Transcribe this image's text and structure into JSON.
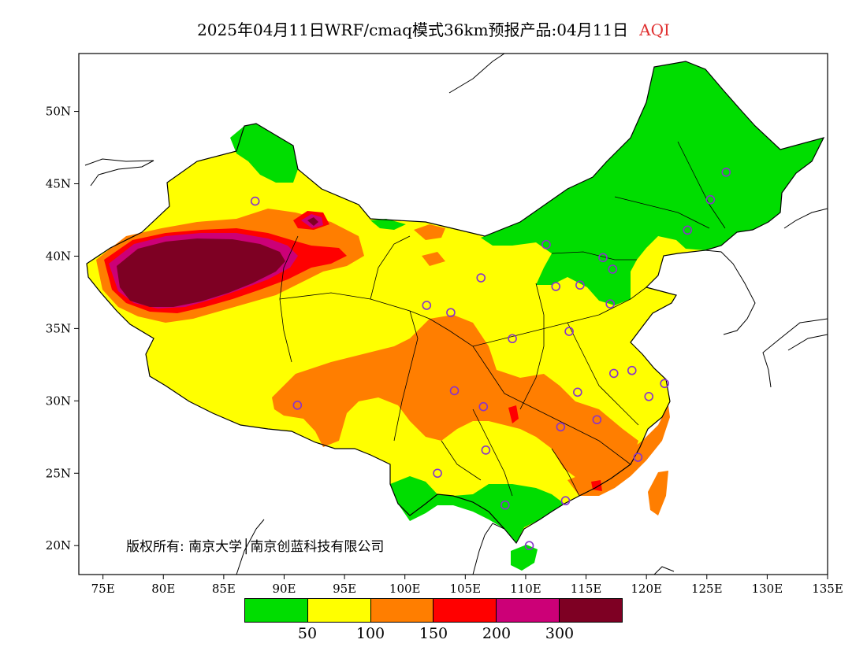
{
  "title": {
    "main": "2025年04月11日WRF/cmaq模式36km预报产品:04月11日",
    "variable": "AQI"
  },
  "axes": {
    "x_ticks": [
      "75E",
      "80E",
      "85E",
      "90E",
      "95E",
      "100E",
      "105E",
      "110E",
      "115E",
      "120E",
      "125E",
      "130E",
      "135E"
    ],
    "y_ticks": [
      "50N",
      "45N",
      "40N",
      "35N",
      "30N",
      "25N",
      "20N"
    ]
  },
  "copyright": "版权所有: 南京大学│南京创蓝科技有限公司",
  "legend": {
    "colors": [
      "#00dd00",
      "#ffff00",
      "#ff7e00",
      "#ff0000",
      "#cc0077",
      "#7e0023"
    ],
    "labels": [
      "50",
      "100",
      "150",
      "200",
      "300"
    ]
  },
  "colors": {
    "good": "#00dd00",
    "moderate": "#ffff00",
    "sensitive": "#ff7e00",
    "unhealthy": "#ff0000",
    "very_unhealthy": "#cc0077",
    "hazardous": "#7e0023",
    "station_marker": "#8833cc"
  },
  "stations": [
    {
      "lon": 87.6,
      "lat": 43.8
    },
    {
      "lon": 91.1,
      "lat": 29.7
    },
    {
      "lon": 101.8,
      "lat": 36.6
    },
    {
      "lon": 103.8,
      "lat": 36.1
    },
    {
      "lon": 106.3,
      "lat": 38.5
    },
    {
      "lon": 111.7,
      "lat": 40.8
    },
    {
      "lon": 112.5,
      "lat": 37.9
    },
    {
      "lon": 114.5,
      "lat": 38.0
    },
    {
      "lon": 116.4,
      "lat": 39.9
    },
    {
      "lon": 117.2,
      "lat": 39.1
    },
    {
      "lon": 117.0,
      "lat": 36.7
    },
    {
      "lon": 113.6,
      "lat": 34.8
    },
    {
      "lon": 108.9,
      "lat": 34.3
    },
    {
      "lon": 104.1,
      "lat": 30.7
    },
    {
      "lon": 106.5,
      "lat": 29.6
    },
    {
      "lon": 106.7,
      "lat": 26.6
    },
    {
      "lon": 102.7,
      "lat": 25.0
    },
    {
      "lon": 108.3,
      "lat": 22.8
    },
    {
      "lon": 113.3,
      "lat": 23.1
    },
    {
      "lon": 110.3,
      "lat": 20.0
    },
    {
      "lon": 112.9,
      "lat": 28.2
    },
    {
      "lon": 114.3,
      "lat": 30.6
    },
    {
      "lon": 115.9,
      "lat": 28.7
    },
    {
      "lon": 117.3,
      "lat": 31.9
    },
    {
      "lon": 118.8,
      "lat": 32.1
    },
    {
      "lon": 120.2,
      "lat": 30.3
    },
    {
      "lon": 121.5,
      "lat": 31.2
    },
    {
      "lon": 119.3,
      "lat": 26.1
    },
    {
      "lon": 126.6,
      "lat": 45.8
    },
    {
      "lon": 125.3,
      "lat": 43.9
    },
    {
      "lon": 123.4,
      "lat": 41.8
    }
  ]
}
